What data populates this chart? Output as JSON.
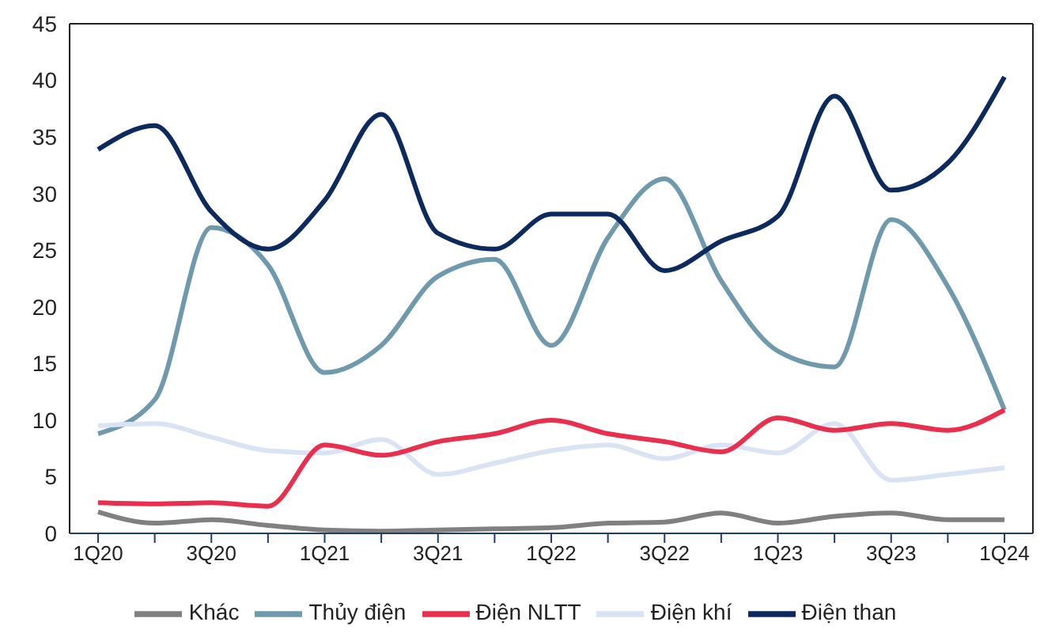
{
  "chart_data": {
    "type": "line",
    "categories": [
      "1Q20",
      null,
      "3Q20",
      null,
      "1Q21",
      null,
      "3Q21",
      null,
      "1Q22",
      null,
      "3Q22",
      null,
      "1Q23",
      null,
      "3Q23",
      null,
      "1Q24"
    ],
    "series": [
      {
        "name": "Thủy điện",
        "color": "#6f9aad",
        "values": [
          8.8,
          11.8,
          27,
          23.7,
          14.2,
          16.6,
          22.7,
          24.2,
          16.6,
          26.1,
          31.3,
          22.3,
          16.1,
          14.7,
          27.7,
          21.8,
          10.9
        ]
      },
      {
        "name": "Điện than",
        "color": "#0d2a5e",
        "values": [
          33.9,
          36,
          28.4,
          25.1,
          29.4,
          37,
          26.5,
          25.1,
          28.2,
          28.2,
          23.2,
          25.8,
          28,
          38.6,
          30.3,
          32.7,
          40.3
        ]
      },
      {
        "name": "Điện khí",
        "color": "#d9e3f4",
        "values": [
          9.5,
          9.7,
          8.5,
          7.3,
          7.1,
          8.3,
          5.2,
          6.2,
          7.3,
          7.8,
          6.6,
          7.8,
          7.1,
          9.7,
          4.7,
          5.2,
          5.8
        ]
      },
      {
        "name": "Điện NLTT",
        "color": "#e8304e",
        "values": [
          2.7,
          2.6,
          2.7,
          2.4,
          7.8,
          6.9,
          8.1,
          8.8,
          10,
          8.8,
          8.1,
          7.2,
          10.2,
          9.1,
          9.7,
          9.1,
          10.9
        ]
      },
      {
        "name": "Khác",
        "color": "#808080",
        "values": [
          1.9,
          0.9,
          1.2,
          0.7,
          0.3,
          0.2,
          0.3,
          0.4,
          0.5,
          0.9,
          1.0,
          1.8,
          0.9,
          1.5,
          1.8,
          1.2,
          1.2
        ]
      }
    ],
    "ylim": [
      0,
      45
    ],
    "yticks": [
      0,
      5,
      10,
      15,
      20,
      25,
      30,
      35,
      40,
      45
    ],
    "grid": false,
    "legend": "bottom",
    "marker": "none",
    "line_style": "solid"
  }
}
